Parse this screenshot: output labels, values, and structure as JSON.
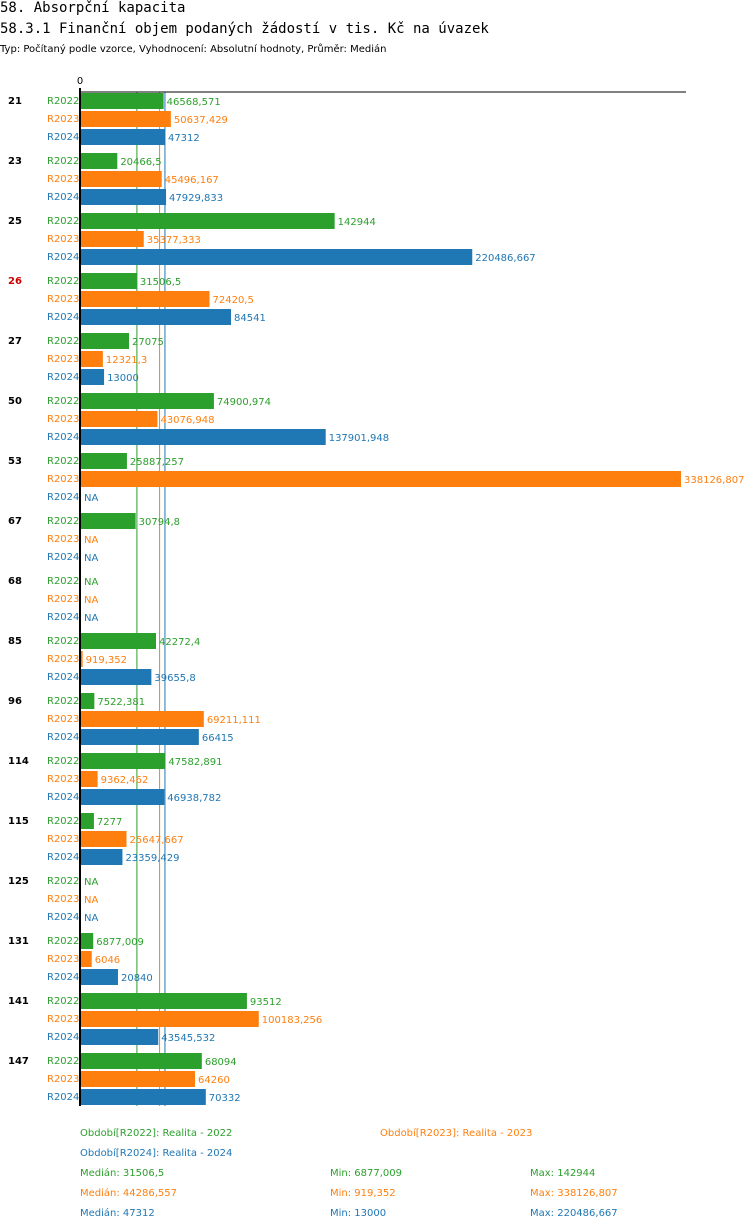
{
  "header": {
    "title": "58. Absorpční kapacita",
    "subtitle": "58.3.1 Finanční objem podaných žádostí v tis. Kč na úvazek",
    "meta": "Typ: Počítaný podle vzorce, Vyhodnocení: Absolutní hodnoty, Průměr: Medián"
  },
  "colors": {
    "R2022": "#2ca02c",
    "R2023": "#ff7f0e",
    "R2024": "#1f77b4",
    "highlight": "#d00000"
  },
  "chart_data": {
    "type": "bar",
    "orientation": "horizontal",
    "title": "58.3.1 Finanční objem podaných žádostí v tis. Kč na úvazek",
    "axis_zero_label": "0",
    "xlim": [
      0,
      338126.807
    ],
    "series": [
      "R2022",
      "R2023",
      "R2024"
    ],
    "highlight_group": "26",
    "groups": [
      {
        "id": "21",
        "values": [
          46568.571,
          50637.429,
          47312
        ],
        "labels": [
          "46568,571",
          "50637,429",
          "47312"
        ]
      },
      {
        "id": "23",
        "values": [
          20466.5,
          45496.167,
          47929.833
        ],
        "labels": [
          "20466,5",
          "45496,167",
          "47929,833"
        ]
      },
      {
        "id": "25",
        "values": [
          142944,
          35377.333,
          220486.667
        ],
        "labels": [
          "142944",
          "35377,333",
          "220486,667"
        ]
      },
      {
        "id": "26",
        "values": [
          31506.5,
          72420.5,
          84541
        ],
        "labels": [
          "31506,5",
          "72420,5",
          "84541"
        ]
      },
      {
        "id": "27",
        "values": [
          27075,
          12321.3,
          13000
        ],
        "labels": [
          "27075",
          "12321,3",
          "13000"
        ]
      },
      {
        "id": "50",
        "values": [
          74900.974,
          43076.948,
          137901.948
        ],
        "labels": [
          "74900,974",
          "43076,948",
          "137901,948"
        ]
      },
      {
        "id": "53",
        "values": [
          25887.257,
          338126.807,
          null
        ],
        "labels": [
          "25887,257",
          "338126,807",
          "NA"
        ]
      },
      {
        "id": "67",
        "values": [
          30794.8,
          null,
          null
        ],
        "labels": [
          "30794,8",
          "NA",
          "NA"
        ]
      },
      {
        "id": "68",
        "values": [
          null,
          null,
          null
        ],
        "labels": [
          "NA",
          "NA",
          "NA"
        ]
      },
      {
        "id": "85",
        "values": [
          42272.4,
          919.352,
          39655.8
        ],
        "labels": [
          "42272,4",
          "919,352",
          "39655,8"
        ]
      },
      {
        "id": "96",
        "values": [
          7522.381,
          69211.111,
          66415
        ],
        "labels": [
          "7522,381",
          "69211,111",
          "66415"
        ]
      },
      {
        "id": "114",
        "values": [
          47582.891,
          9362.462,
          46938.782
        ],
        "labels": [
          "47582,891",
          "9362,462",
          "46938,782"
        ]
      },
      {
        "id": "115",
        "values": [
          7277,
          25647.667,
          23359.429
        ],
        "labels": [
          "7277",
          "25647,667",
          "23359,429"
        ]
      },
      {
        "id": "125",
        "values": [
          null,
          null,
          null
        ],
        "labels": [
          "NA",
          "NA",
          "NA"
        ]
      },
      {
        "id": "131",
        "values": [
          6877.009,
          6046,
          20840
        ],
        "labels": [
          "6877,009",
          "6046",
          "20840"
        ]
      },
      {
        "id": "141",
        "values": [
          93512,
          100183.256,
          43545.532
        ],
        "labels": [
          "93512",
          "100183,256",
          "43545,532"
        ]
      },
      {
        "id": "147",
        "values": [
          68094,
          64260,
          70332
        ],
        "labels": [
          "68094",
          "64260",
          "70332"
        ]
      }
    ],
    "medians": [
      31506.5,
      44286.557,
      47312
    ]
  },
  "legend": {
    "r2022": "Období[R2022]: Realita - 2022",
    "r2023": "Období[R2023]: Realita - 2023",
    "r2024": "Období[R2024]: Realita - 2024"
  },
  "stats": [
    {
      "median": "Medián: 31506,5",
      "min": "Min: 6877,009",
      "max": "Max: 142944"
    },
    {
      "median": "Medián: 44286,557",
      "min": "Min: 919,352",
      "max": "Max: 338126,807"
    },
    {
      "median": "Medián: 47312",
      "min": "Min: 13000",
      "max": "Max: 220486,667"
    }
  ]
}
